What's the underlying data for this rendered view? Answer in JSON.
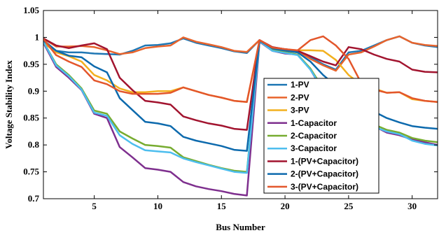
{
  "chart_data": {
    "type": "line",
    "xlabel": "Bus Number",
    "ylabel": "Voltage Stability Index",
    "xlim": [
      1,
      32
    ],
    "ylim": [
      0.7,
      1.05
    ],
    "xticks": [
      5,
      10,
      15,
      20,
      25,
      30
    ],
    "yticks": [
      0.7,
      0.75,
      0.8,
      0.85,
      0.9,
      0.95,
      1,
      1.05
    ],
    "ytick_labels": [
      "0.7",
      "0.75",
      "0.8",
      "0.85",
      "0.9",
      "0.95",
      "1",
      "1.05"
    ],
    "grid": false,
    "legend_position": "center-right",
    "x": [
      1,
      2,
      3,
      4,
      5,
      6,
      7,
      8,
      9,
      10,
      11,
      12,
      13,
      14,
      15,
      16,
      17,
      18,
      19,
      20,
      21,
      22,
      23,
      24,
      25,
      26,
      27,
      28,
      29,
      30,
      31,
      32
    ],
    "series": [
      {
        "name": "1-PV",
        "color": "#1f77b4",
        "width": 2.5,
        "values": [
          0.995,
          0.975,
          0.972,
          0.972,
          0.97,
          0.969,
          0.968,
          0.975,
          0.985,
          0.986,
          0.989,
          0.998,
          0.99,
          0.985,
          0.98,
          0.974,
          0.971,
          0.995,
          0.978,
          0.975,
          0.972,
          0.963,
          0.95,
          0.94,
          0.972,
          0.975,
          0.985,
          0.995,
          1.002,
          0.99,
          0.985,
          0.982
        ]
      },
      {
        "name": "2-PV",
        "color": "#e8642c",
        "width": 2.5,
        "values": [
          0.998,
          0.983,
          0.983,
          0.984,
          0.982,
          0.976,
          0.969,
          0.972,
          0.98,
          0.983,
          0.985,
          1.0,
          0.992,
          0.987,
          0.982,
          0.975,
          0.973,
          0.995,
          0.982,
          0.978,
          0.975,
          0.96,
          0.948,
          0.938,
          0.968,
          0.972,
          0.983,
          0.995,
          1.002,
          0.99,
          0.986,
          0.984
        ]
      },
      {
        "name": "3-PV",
        "color": "#f2b01e",
        "width": 2.5,
        "values": [
          0.99,
          0.972,
          0.965,
          0.955,
          0.93,
          0.92,
          0.905,
          0.898,
          0.898,
          0.9,
          0.9,
          0.907,
          0.9,
          0.893,
          0.888,
          0.882,
          0.88,
          0.993,
          0.981,
          0.977,
          0.976,
          0.976,
          0.975,
          0.958,
          0.93,
          0.912,
          0.905,
          0.897,
          0.898,
          0.885,
          0.882,
          0.88
        ]
      },
      {
        "name": "1-Capacitor",
        "color": "#7e2f8e",
        "width": 2.5,
        "values": [
          0.99,
          0.945,
          0.925,
          0.902,
          0.858,
          0.85,
          0.796,
          0.777,
          0.757,
          0.754,
          0.75,
          0.731,
          0.723,
          0.718,
          0.714,
          0.709,
          0.706,
          0.992,
          0.975,
          0.97,
          0.968,
          0.94,
          0.9,
          0.87,
          0.852,
          0.845,
          0.835,
          0.823,
          0.818,
          0.81,
          0.805,
          0.8
        ]
      },
      {
        "name": "2-Capacitor",
        "color": "#77ac30",
        "width": 2.5,
        "values": [
          0.992,
          0.95,
          0.93,
          0.905,
          0.864,
          0.858,
          0.825,
          0.812,
          0.8,
          0.798,
          0.795,
          0.777,
          0.77,
          0.763,
          0.757,
          0.752,
          0.75,
          0.993,
          0.976,
          0.972,
          0.968,
          0.942,
          0.905,
          0.875,
          0.856,
          0.848,
          0.838,
          0.828,
          0.823,
          0.813,
          0.808,
          0.805
        ]
      },
      {
        "name": "3-Capacitor",
        "color": "#4dbeee",
        "width": 2.5,
        "values": [
          0.992,
          0.948,
          0.928,
          0.903,
          0.86,
          0.854,
          0.818,
          0.802,
          0.79,
          0.788,
          0.786,
          0.775,
          0.768,
          0.762,
          0.756,
          0.75,
          0.748,
          0.993,
          0.975,
          0.971,
          0.967,
          0.94,
          0.902,
          0.872,
          0.852,
          0.844,
          0.834,
          0.825,
          0.82,
          0.808,
          0.802,
          0.799
        ]
      },
      {
        "name": "1-(PV+Capacitor)",
        "color": "#a2142f",
        "width": 2.5,
        "values": [
          0.998,
          0.985,
          0.98,
          0.985,
          0.989,
          0.978,
          0.925,
          0.902,
          0.882,
          0.879,
          0.875,
          0.853,
          0.846,
          0.84,
          0.836,
          0.83,
          0.828,
          0.995,
          0.982,
          0.978,
          0.975,
          0.965,
          0.955,
          0.948,
          0.982,
          0.978,
          0.968,
          0.96,
          0.955,
          0.94,
          0.936,
          0.935
        ]
      },
      {
        "name": "2-(PV+Capacitor)",
        "color": "#0d6aad",
        "width": 2.5,
        "values": [
          0.994,
          0.975,
          0.966,
          0.963,
          0.946,
          0.935,
          0.887,
          0.865,
          0.843,
          0.84,
          0.835,
          0.815,
          0.808,
          0.803,
          0.798,
          0.791,
          0.789,
          0.994,
          0.98,
          0.976,
          0.972,
          0.955,
          0.93,
          0.91,
          0.89,
          0.878,
          0.862,
          0.85,
          0.842,
          0.835,
          0.832,
          0.83
        ]
      },
      {
        "name": "3-(PV+Capacitor)",
        "color": "#e3562b",
        "width": 2.5,
        "values": [
          0.997,
          0.967,
          0.955,
          0.945,
          0.92,
          0.913,
          0.9,
          0.895,
          0.895,
          0.895,
          0.897,
          0.907,
          0.9,
          0.893,
          0.888,
          0.882,
          0.88,
          0.995,
          0.981,
          0.978,
          0.976,
          0.995,
          1.002,
          0.985,
          0.96,
          0.915,
          0.903,
          0.897,
          0.898,
          0.887,
          0.882,
          0.88
        ]
      }
    ]
  }
}
